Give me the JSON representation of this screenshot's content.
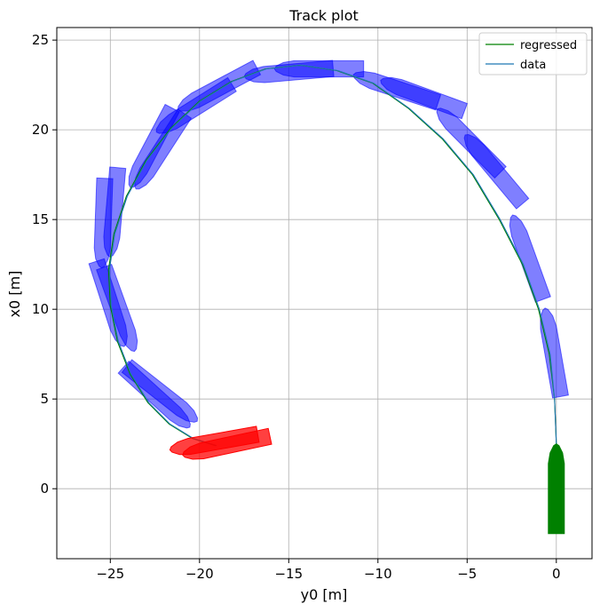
{
  "chart_data": {
    "type": "line",
    "title": "Track plot",
    "xlabel": "y0 [m]",
    "ylabel": "x0 [m]",
    "xlim": [
      -28,
      2
    ],
    "ylim": [
      -3.9,
      25.7
    ],
    "xticks": [
      -25,
      -20,
      -15,
      -10,
      -5,
      0
    ],
    "yticks": [
      0,
      5,
      10,
      15,
      20,
      25
    ],
    "grid": true,
    "legend": {
      "position": "top-right",
      "entries": [
        "regressed",
        "data"
      ]
    },
    "colors": {
      "regressed": "#008000",
      "data": "#1f77b4",
      "ship_track": "#0000ff",
      "ship_start": "#008000",
      "ship_end": "#ff0000"
    },
    "series": [
      {
        "name": "regressed",
        "x": [
          0,
          0,
          -0.1,
          -0.4,
          -1.0,
          -1.9,
          -3.2,
          -4.7,
          -6.4,
          -8.3,
          -10.3,
          -12.3,
          -14.3,
          -16.3,
          -18.2,
          -20.0,
          -21.6,
          -23.0,
          -24.1,
          -24.8,
          -25.1,
          -25.0,
          -24.6,
          -23.9,
          -22.9,
          -21.7,
          -20.4,
          -19.1
        ],
        "y": [
          0,
          2.5,
          5.0,
          7.5,
          10.0,
          12.5,
          15.0,
          17.5,
          19.5,
          21.2,
          22.6,
          23.3,
          23.6,
          23.4,
          22.7,
          21.6,
          20.1,
          18.3,
          16.3,
          14.2,
          12.2,
          10.2,
          8.2,
          6.4,
          4.8,
          3.6,
          2.8,
          2.4
        ]
      },
      {
        "name": "data",
        "x": [
          0,
          0,
          -0.1,
          -0.35,
          -0.95,
          -1.85,
          -3.15,
          -4.65,
          -6.35,
          -8.25,
          -10.25,
          -12.25,
          -14.25,
          -16.25,
          -18.15,
          -19.95,
          -21.55,
          -22.95,
          -24.05,
          -24.75,
          -25.05,
          -24.95,
          -24.55,
          -23.85,
          -22.85,
          -21.65,
          -20.35,
          -19.05
        ],
        "y": [
          0,
          2.5,
          5.0,
          7.5,
          10.0,
          12.5,
          15.0,
          17.5,
          19.5,
          21.2,
          22.6,
          23.3,
          23.6,
          23.4,
          22.7,
          21.6,
          20.1,
          18.3,
          16.3,
          14.2,
          12.2,
          10.2,
          8.2,
          6.4,
          4.8,
          3.6,
          2.8,
          2.4
        ]
      }
    ],
    "ships": {
      "start": {
        "x": 0,
        "y": 0,
        "heading": 0
      },
      "end": {
        "x": -18.5,
        "y": 2.4,
        "heading": 102
      },
      "track": [
        {
          "x": -0.2,
          "y": 7.6,
          "heading": 10
        },
        {
          "x": -1.6,
          "y": 12.9,
          "heading": 20
        },
        {
          "x": -3.5,
          "y": 17.8,
          "heading": 40
        },
        {
          "x": -4.9,
          "y": 19.4,
          "heading": 45
        },
        {
          "x": -7.5,
          "y": 21.9,
          "heading": 70
        },
        {
          "x": -9.0,
          "y": 22.3,
          "heading": 72
        },
        {
          "x": -13.3,
          "y": 23.4,
          "heading": 90
        },
        {
          "x": -15.0,
          "y": 23.2,
          "heading": 95
        },
        {
          "x": -19.0,
          "y": 22.3,
          "heading": 118
        },
        {
          "x": -20.3,
          "y": 21.2,
          "heading": 122
        },
        {
          "x": -22.2,
          "y": 18.8,
          "heading": 147
        },
        {
          "x": -22.7,
          "y": 19.0,
          "heading": 152
        },
        {
          "x": -24.8,
          "y": 15.4,
          "heading": 175
        },
        {
          "x": -25.4,
          "y": 14.8,
          "heading": 178
        },
        {
          "x": -25.0,
          "y": 10.3,
          "heading": 198
        },
        {
          "x": -24.5,
          "y": 10.0,
          "heading": 200
        },
        {
          "x": -22.4,
          "y": 5.1,
          "heading": 228
        },
        {
          "x": -22.1,
          "y": 5.3,
          "heading": 232
        }
      ]
    }
  }
}
